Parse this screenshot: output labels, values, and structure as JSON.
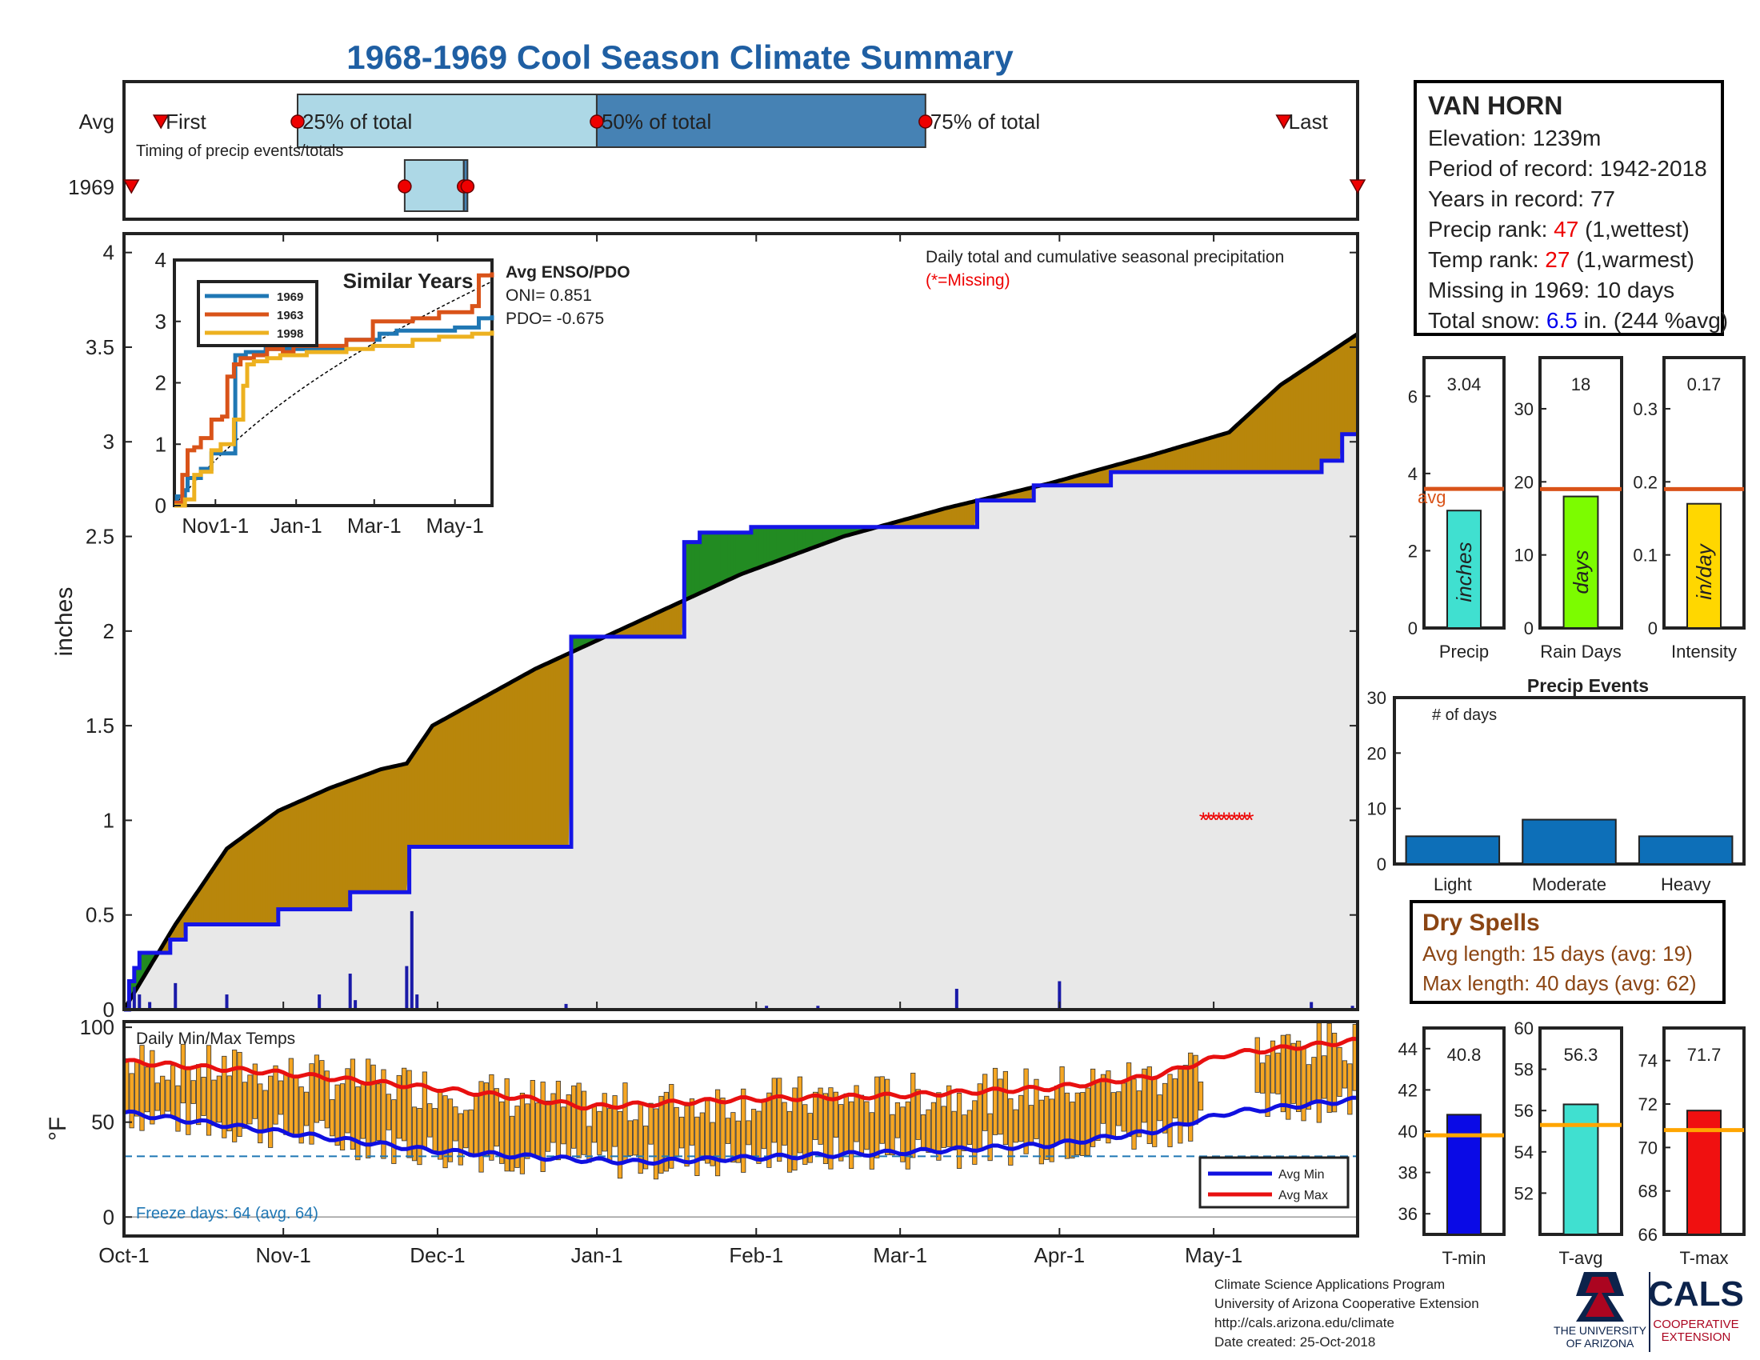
{
  "title": "1968-1969 Cool Season Climate Summary",
  "timing": {
    "row_labels": [
      "Avg",
      "1969"
    ],
    "subtitle": "Timing of precip events/totals",
    "first_label": "First",
    "last_label": "Last",
    "q25_label": "25% of total",
    "q50_label": "50% of total",
    "q75_label": "75% of total",
    "avg": {
      "first": 10,
      "q25": 47,
      "q50": 128,
      "q75": 217,
      "last": 314
    },
    "y1969": {
      "first": 2,
      "q25": 76,
      "q50": 92,
      "q75": 93,
      "last": 334
    }
  },
  "main": {
    "ylabel": "inches",
    "header": "Daily total and cumulative seasonal precipitation",
    "missing_note": "(*=Missing)",
    "colors": {
      "observed": "#1515e6",
      "wet": "#228b22",
      "dry": "#b8860b",
      "avg": "#000000",
      "fill": "#e8e8e8"
    }
  },
  "inset": {
    "title": "Similar Years",
    "enso_title": "Avg ENSO/PDO",
    "oni": "ONI= 0.851",
    "pdo": "PDO= -0.675",
    "xticks": [
      "Nov1-1",
      "Jan-1",
      "Mar-1",
      "May-1"
    ],
    "yticks": [
      "0",
      "1",
      "2",
      "3",
      "4"
    ],
    "legend": [
      "1969",
      "1963",
      "1998"
    ],
    "colors": [
      "#1f77b4",
      "#d95319",
      "#edb120"
    ]
  },
  "info": {
    "station": "VAN HORN",
    "elevation": "Elevation: 1239m",
    "period": "Period of record: 1942-2018",
    "years": "Years in record: 77",
    "precip_rank_pre": "Precip rank: ",
    "precip_rank_val": "47",
    "precip_rank_post": " (1,wettest)",
    "temp_rank_pre": "Temp rank: ",
    "temp_rank_val": "27",
    "temp_rank_post": " (1,warmest)",
    "missing": "Missing in 1969: 10 days",
    "snow_pre": "Total snow: ",
    "snow_val": "6.5",
    "snow_post": " in. (244 %avg)"
  },
  "summary": {
    "avg_label": "avg",
    "precip": {
      "label": "Precip",
      "unit": "inches",
      "value_text": "3.04",
      "color": "#40e0d0"
    },
    "raindays": {
      "label": "Rain Days",
      "unit": "days",
      "value_text": "18",
      "color": "#7cfc00"
    },
    "intensity": {
      "label": "Intensity",
      "unit": "in/day",
      "value_text": "0.17",
      "color": "#ffd700"
    }
  },
  "events": {
    "title": "Precip Events",
    "ylabel": "# of days"
  },
  "dry": {
    "title": "Dry Spells",
    "avg": "Avg length: 15 days (avg: 19)",
    "max": "Max length: 40 days (avg: 62)"
  },
  "temps": {
    "title": "Daily Min/Max Temps",
    "freeze": "Freeze days: 64 (avg. 64)",
    "legend_min": "Avg Min",
    "legend_max": "Avg Max",
    "tmin": {
      "label": "T-min",
      "value_text": "40.8"
    },
    "tavg": {
      "label": "T-avg",
      "value_text": "56.3"
    },
    "tmax": {
      "label": "T-max",
      "value_text": "71.7"
    }
  },
  "month_ticks": [
    "Oct-1",
    "Nov-1",
    "Dec-1",
    "Jan-1",
    "Feb-1",
    "Mar-1",
    "Apr-1",
    "May-1"
  ],
  "footer": {
    "line1": "Climate Science Applications Program",
    "line2": "University of Arizona Cooperative Extension",
    "line3": "http://cals.arizona.edu/climate",
    "line4": "Date created: 25-Oct-2018",
    "ua_line1": "THE UNIVERSITY",
    "ua_line2": "OF ARIZONA",
    "cals": "CALS",
    "cals_line1": "COOPERATIVE",
    "cals_line2": "EXTENSION"
  },
  "chart_data": [
    {
      "type": "line",
      "title": "Daily total and cumulative seasonal precipitation",
      "ylabel": "inches",
      "ylim": [
        0,
        4.1
      ],
      "xlim_days": [
        0,
        240
      ],
      "xticks": [
        "Oct-1",
        "Nov-1",
        "Dec-1",
        "Jan-1",
        "Feb-1",
        "Mar-1",
        "Apr-1",
        "May-1"
      ],
      "series": [
        {
          "name": "1969",
          "x": [
            0,
            1,
            2,
            3,
            4,
            9,
            12,
            20,
            30,
            38,
            44,
            55,
            55.5,
            56,
            57,
            68,
            71,
            84,
            87,
            109,
            112,
            122,
            130,
            142,
            166,
            177,
            192,
            233,
            237,
            240
          ],
          "y": [
            0,
            0.15,
            0.22,
            0.3,
            0.3,
            0.37,
            0.45,
            0.45,
            0.53,
            0.53,
            0.62,
            0.62,
            0.86,
            0.86,
            0.86,
            0.86,
            0.86,
            0.86,
            1.97,
            2.47,
            2.52,
            2.55,
            2.55,
            2.55,
            2.69,
            2.77,
            2.84,
            2.9,
            3.04,
            3.04
          ]
        },
        {
          "name": "avg",
          "x": [
            0,
            10,
            20,
            30,
            40,
            50,
            55,
            60,
            80,
            100,
            120,
            140,
            160,
            180,
            200,
            215,
            225,
            240
          ],
          "y": [
            0,
            0.45,
            0.85,
            1.05,
            1.17,
            1.27,
            1.3,
            1.5,
            1.8,
            2.05,
            2.3,
            2.5,
            2.65,
            2.78,
            2.93,
            3.05,
            3.3,
            3.57
          ]
        }
      ],
      "daily_totals": {
        "x": [
          1,
          2,
          3,
          5,
          10,
          20,
          38,
          44,
          45,
          55,
          56,
          57,
          86,
          125,
          135,
          162,
          182,
          231,
          239
        ],
        "y": [
          0.05,
          0.12,
          0.08,
          0.04,
          0.14,
          0.08,
          0.08,
          0.19,
          0.05,
          0.23,
          0.52,
          0.08,
          0.03,
          0.02,
          0.02,
          0.11,
          0.15,
          0.04,
          0.02
        ]
      },
      "missing_days": [
        210,
        211,
        212,
        213,
        214,
        215,
        216,
        217,
        218,
        219
      ]
    },
    {
      "type": "line",
      "title": "Similar Years",
      "xticks": [
        "Nov1-1",
        "Jan-1",
        "Mar-1",
        "May-1"
      ],
      "ylim": [
        0,
        4
      ],
      "series": [
        {
          "name": "1969",
          "x": [
            0,
            2,
            4,
            8,
            10,
            15,
            20,
            24,
            28,
            40,
            46,
            54,
            56,
            69,
            80,
            110,
            130,
            155,
            168,
            212,
            230,
            240
          ],
          "y": [
            0,
            0.15,
            0.15,
            0.25,
            0.45,
            0.45,
            0.6,
            0.6,
            0.85,
            0.85,
            2.45,
            2.5,
            2.5,
            2.55,
            2.55,
            2.55,
            2.7,
            2.8,
            2.85,
            2.9,
            3.05,
            3.1
          ]
        },
        {
          "name": "1963",
          "x": [
            0,
            6,
            10,
            15,
            20,
            28,
            36,
            40,
            45,
            50,
            60,
            70,
            82,
            90,
            110,
            130,
            150,
            180,
            200,
            225,
            230,
            240
          ],
          "y": [
            0.05,
            0.5,
            0.9,
            0.95,
            1.1,
            1.4,
            1.45,
            2.1,
            2.3,
            2.4,
            2.45,
            2.55,
            2.5,
            2.6,
            2.6,
            2.7,
            3.0,
            3.05,
            3.15,
            3.25,
            3.75,
            3.8
          ]
        },
        {
          "name": "1998",
          "x": [
            0,
            8,
            15,
            20,
            28,
            35,
            45,
            52,
            55,
            60,
            70,
            80,
            100,
            130,
            150,
            180,
            200,
            225,
            240
          ],
          "y": [
            0,
            0.1,
            0.5,
            0.55,
            0.9,
            1.0,
            1.4,
            1.95,
            2.3,
            2.35,
            2.4,
            2.45,
            2.5,
            2.55,
            2.6,
            2.7,
            2.75,
            2.8,
            2.85
          ]
        }
      ]
    },
    {
      "type": "bar",
      "title": "Precip",
      "categories": [
        "Precip"
      ],
      "values": [
        3.04
      ],
      "avg": 3.6,
      "ylim": [
        0,
        7
      ]
    },
    {
      "type": "bar",
      "title": "Rain Days",
      "categories": [
        "Rain Days"
      ],
      "values": [
        18
      ],
      "avg": 19,
      "ylim": [
        0,
        37
      ]
    },
    {
      "type": "bar",
      "title": "Intensity",
      "categories": [
        "Intensity"
      ],
      "values": [
        0.17
      ],
      "avg": 0.19,
      "ylim": [
        0,
        0.37
      ]
    },
    {
      "type": "bar",
      "title": "Precip Events",
      "categories": [
        "Light",
        "Moderate",
        "Heavy"
      ],
      "values": [
        5,
        8,
        5
      ],
      "ylabel": "# of days",
      "ylim": [
        0,
        30
      ]
    },
    {
      "type": "line",
      "title": "Daily Min/Max Temps",
      "ylabel": "°F",
      "ylim": [
        -10,
        103
      ],
      "avg_min": {
        "x": [
          0,
          30,
          60,
          90,
          100,
          120,
          150,
          180,
          200,
          215,
          240
        ],
        "y": [
          55,
          45,
          35,
          30,
          29,
          31,
          34,
          38,
          45,
          55,
          62
        ]
      },
      "avg_max": {
        "x": [
          0,
          30,
          60,
          80,
          90,
          120,
          150,
          180,
          200,
          215,
          240
        ],
        "y": [
          82,
          76,
          68,
          62,
          58,
          62,
          64,
          68,
          74,
          86,
          93
        ]
      },
      "freeze_line": 32,
      "missing_range": [
        210,
        219
      ]
    },
    {
      "type": "bar",
      "title": "T-min",
      "categories": [
        "T-min"
      ],
      "values": [
        40.8
      ],
      "avg": 39.8,
      "ylim": [
        35,
        45
      ]
    },
    {
      "type": "bar",
      "title": "T-avg",
      "categories": [
        "T-avg"
      ],
      "values": [
        56.3
      ],
      "avg": 55.3,
      "ylim": [
        50,
        60
      ]
    },
    {
      "type": "bar",
      "title": "T-max",
      "categories": [
        "T-max"
      ],
      "values": [
        71.7
      ],
      "avg": 70.8,
      "ylim": [
        66,
        75.5
      ]
    }
  ]
}
